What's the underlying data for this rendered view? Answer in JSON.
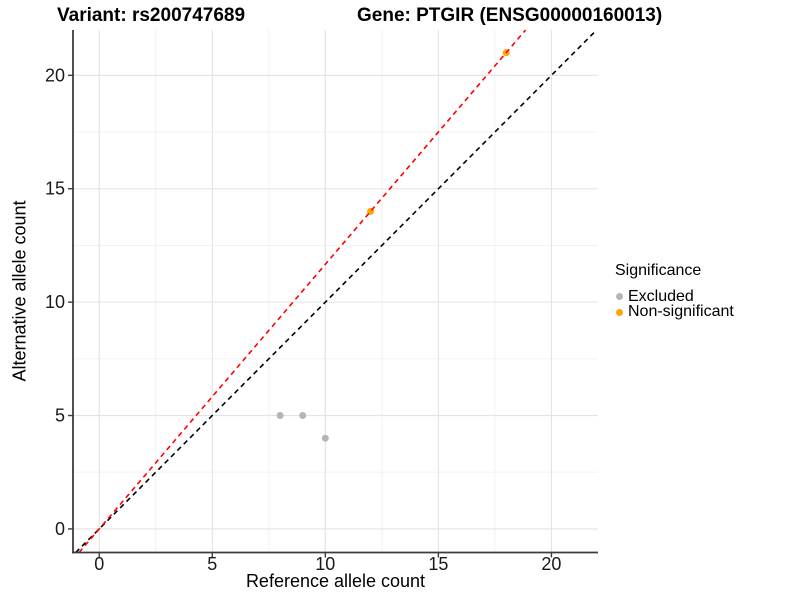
{
  "titles": {
    "variant": "Variant: rs200747689",
    "gene": "Gene: PTGIR (ENSG00000160013)"
  },
  "chart_data": {
    "type": "scatter",
    "title_left": "Variant: rs200747689",
    "title_right": "Gene: PTGIR (ENSG00000160013)",
    "xlabel": "Reference allele count",
    "ylabel": "Alternative allele count",
    "xlim": [
      -1.16,
      22.06
    ],
    "ylim": [
      -1.04,
      22.0
    ],
    "x_ticks": [
      0,
      5,
      10,
      15,
      20
    ],
    "y_ticks": [
      0,
      5,
      10,
      15,
      20
    ],
    "x_minor": [
      2.5,
      7.5,
      12.5,
      17.5
    ],
    "y_minor": [
      2.5,
      7.5,
      12.5,
      17.5
    ],
    "grid": "major-and-minor, light gray on white",
    "series": [
      {
        "name": "Excluded",
        "color": "#b5b5b5",
        "points": [
          [
            8,
            5
          ],
          [
            9,
            5
          ],
          [
            10,
            4
          ]
        ]
      },
      {
        "name": "Non-significant",
        "color": "#FFA500",
        "points": [
          [
            12,
            14
          ],
          [
            18,
            21
          ]
        ]
      }
    ],
    "lines": [
      {
        "name": "identity-line",
        "color": "#000000",
        "style": "dashed",
        "slope": 1.0,
        "intercept": 0
      },
      {
        "name": "expected-ratio-line",
        "color": "#FF0000",
        "style": "dashed",
        "slope": 1.1667,
        "intercept": 0
      }
    ],
    "legend": {
      "title": "Significance",
      "position": "right",
      "entries": [
        {
          "label": "Excluded",
          "color": "#b5b5b5"
        },
        {
          "label": "Non-significant",
          "color": "#FFA500"
        }
      ]
    },
    "style": {
      "axis_line_color": "#3c3c3c",
      "major_grid_color": "#e3e3e3",
      "minor_grid_color": "#f0f0f0",
      "tick_label_color": "#1a1a1a",
      "point_radius": 3.5
    }
  }
}
